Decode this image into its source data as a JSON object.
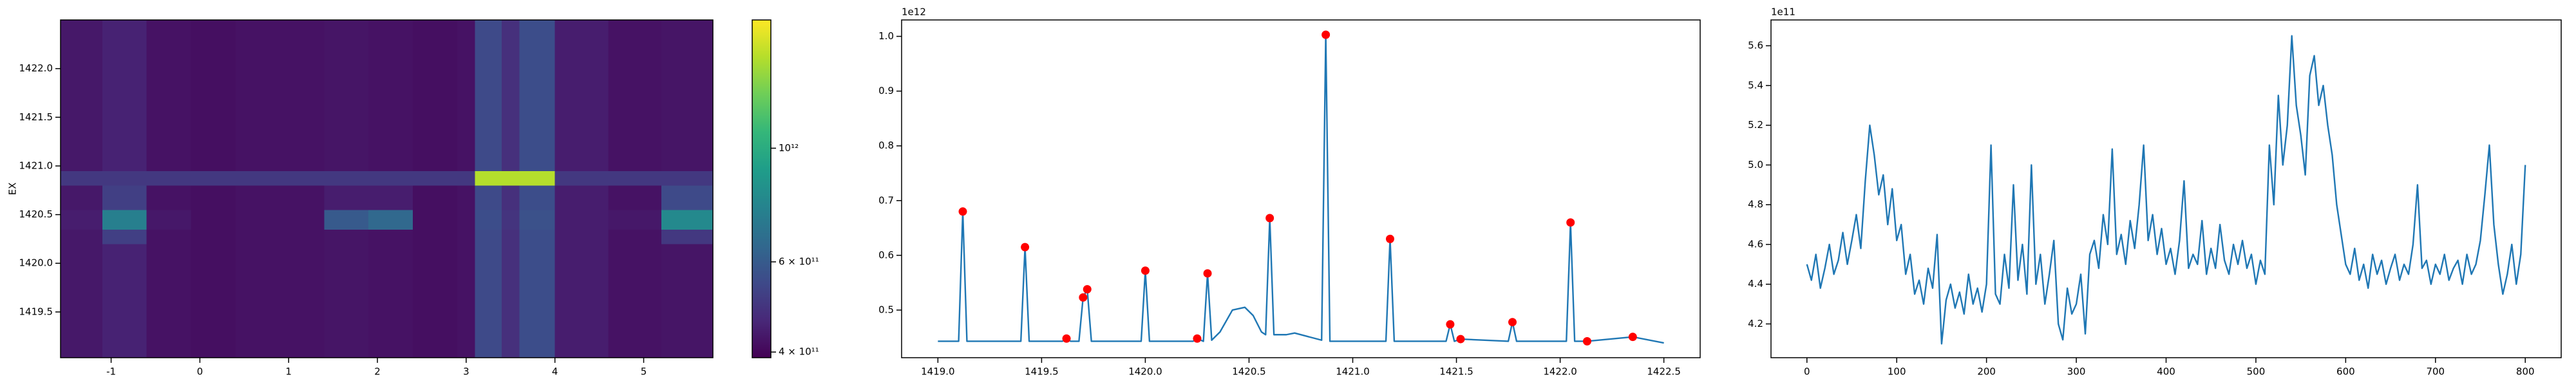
{
  "chart_data": [
    {
      "type": "heatmap",
      "ylabel": "EX",
      "colormap": "viridis",
      "colorbar_scale": "log",
      "xlim": [
        -1.57,
        5.78
      ],
      "ylim": [
        1419.03,
        1422.5
      ],
      "xticks": [
        -1,
        0,
        1,
        2,
        3,
        4,
        5
      ],
      "yticks": [
        1419.5,
        {
          "value": 1420.0,
          "label": "1420.0"
        },
        1420.5,
        {
          "value": 1421.0,
          "label": "1421.0"
        },
        1421.5,
        {
          "value": 1422.0,
          "label": "1422.0"
        }
      ],
      "clim": [
        390000000000.0,
        1780000000000.0
      ],
      "cticks": [
        {
          "value": 400000000000.0,
          "label": "4 × 10¹¹"
        },
        {
          "value": 600000000000.0,
          "label": "6 × 10¹¹"
        },
        {
          "value": 1000000000000.0,
          "label": "10¹²"
        }
      ],
      "x_edges": [
        -1.57,
        -1.1,
        -0.6,
        -0.1,
        0.4,
        0.9,
        1.4,
        1.9,
        2.4,
        2.9,
        3.1,
        3.4,
        3.6,
        4.0,
        4.6,
        5.2,
        5.78
      ],
      "y_edges": [
        1419.03,
        1419.5,
        1419.9,
        1420.2,
        1420.35,
        1420.55,
        1420.8,
        1420.95,
        1421.2,
        1421.6,
        1422.0,
        1422.5
      ],
      "z": [
        [
          430000000000.0,
          450000000000.0,
          420000000000.0,
          415000000000.0,
          420000000000.0,
          420000000000.0,
          425000000000.0,
          420000000000.0,
          415000000000.0,
          420000000000.0,
          550000000000.0,
          480000000000.0,
          560000000000.0,
          440000000000.0,
          420000000000.0,
          425000000000.0
        ],
        [
          430000000000.0,
          450000000000.0,
          420000000000.0,
          415000000000.0,
          420000000000.0,
          420000000000.0,
          425000000000.0,
          420000000000.0,
          415000000000.0,
          420000000000.0,
          550000000000.0,
          480000000000.0,
          560000000000.0,
          440000000000.0,
          420000000000.0,
          425000000000.0
        ],
        [
          430000000000.0,
          450000000000.0,
          420000000000.0,
          415000000000.0,
          420000000000.0,
          420000000000.0,
          425000000000.0,
          420000000000.0,
          415000000000.0,
          420000000000.0,
          550000000000.0,
          480000000000.0,
          560000000000.0,
          440000000000.0,
          420000000000.0,
          425000000000.0
        ],
        [
          430000000000.0,
          520000000000.0,
          420000000000.0,
          415000000000.0,
          420000000000.0,
          420000000000.0,
          425000000000.0,
          420000000000.0,
          415000000000.0,
          420000000000.0,
          550000000000.0,
          480000000000.0,
          560000000000.0,
          440000000000.0,
          420000000000.0,
          500000000000.0
        ],
        [
          440000000000.0,
          750000000000.0,
          430000000000.0,
          415000000000.0,
          420000000000.0,
          420000000000.0,
          600000000000.0,
          650000000000.0,
          415000000000.0,
          420000000000.0,
          560000000000.0,
          490000000000.0,
          570000000000.0,
          440000000000.0,
          430000000000.0,
          800000000000.0
        ],
        [
          430000000000.0,
          520000000000.0,
          420000000000.0,
          415000000000.0,
          420000000000.0,
          420000000000.0,
          440000000000.0,
          440000000000.0,
          415000000000.0,
          420000000000.0,
          550000000000.0,
          480000000000.0,
          560000000000.0,
          440000000000.0,
          420000000000.0,
          550000000000.0
        ],
        [
          500000000000.0,
          500000000000.0,
          500000000000.0,
          500000000000.0,
          500000000000.0,
          500000000000.0,
          500000000000.0,
          500000000000.0,
          500000000000.0,
          500000000000.0,
          1500000000000.0,
          1500000000000.0,
          1500000000000.0,
          500000000000.0,
          500000000000.0,
          500000000000.0
        ],
        [
          430000000000.0,
          450000000000.0,
          420000000000.0,
          415000000000.0,
          420000000000.0,
          420000000000.0,
          425000000000.0,
          420000000000.0,
          415000000000.0,
          420000000000.0,
          550000000000.0,
          480000000000.0,
          560000000000.0,
          440000000000.0,
          420000000000.0,
          425000000000.0
        ],
        [
          430000000000.0,
          450000000000.0,
          420000000000.0,
          415000000000.0,
          420000000000.0,
          420000000000.0,
          425000000000.0,
          420000000000.0,
          415000000000.0,
          420000000000.0,
          550000000000.0,
          480000000000.0,
          560000000000.0,
          440000000000.0,
          420000000000.0,
          425000000000.0
        ],
        [
          430000000000.0,
          450000000000.0,
          420000000000.0,
          415000000000.0,
          420000000000.0,
          420000000000.0,
          425000000000.0,
          420000000000.0,
          415000000000.0,
          420000000000.0,
          550000000000.0,
          480000000000.0,
          560000000000.0,
          440000000000.0,
          420000000000.0,
          425000000000.0
        ],
        [
          430000000000.0,
          450000000000.0,
          420000000000.0,
          415000000000.0,
          420000000000.0,
          420000000000.0,
          425000000000.0,
          420000000000.0,
          415000000000.0,
          420000000000.0,
          550000000000.0,
          480000000000.0,
          560000000000.0,
          440000000000.0,
          420000000000.0,
          425000000000.0
        ]
      ]
    },
    {
      "type": "line",
      "y_offset_label": "1e12",
      "xlim": [
        1418.825,
        1422.675
      ],
      "ylim": [
        0.413,
        1.03
      ],
      "xticks": [
        {
          "value": 1419.0,
          "label": "1419.0"
        },
        1419.5,
        {
          "value": 1420.0,
          "label": "1420.0"
        },
        1420.5,
        {
          "value": 1421.0,
          "label": "1421.0"
        },
        1421.5,
        {
          "value": 1422.0,
          "label": "1422.0"
        },
        1422.5
      ],
      "yticks": [
        0.5,
        0.6,
        0.7,
        0.8,
        0.9,
        {
          "value": 1.0,
          "label": "1.0"
        }
      ],
      "series": [
        {
          "color": "#1f77b4",
          "x": [
            1419.0,
            1419.1,
            1419.12,
            1419.14,
            1419.4,
            1419.42,
            1419.44,
            1419.6,
            1419.62,
            1419.64,
            1419.68,
            1419.7,
            1419.72,
            1419.74,
            1419.98,
            1420.0,
            1420.02,
            1420.23,
            1420.25,
            1420.28,
            1420.3,
            1420.32,
            1420.36,
            1420.42,
            1420.48,
            1420.52,
            1420.56,
            1420.58,
            1420.6,
            1420.62,
            1420.68,
            1420.72,
            1420.78,
            1420.85,
            1420.87,
            1420.89,
            1421.16,
            1421.18,
            1421.2,
            1421.45,
            1421.47,
            1421.49,
            1421.52,
            1421.75,
            1421.77,
            1421.79,
            1422.03,
            1422.05,
            1422.07,
            1422.13,
            1422.35,
            1422.5
          ],
          "values": [
            0.443,
            0.443,
            0.68,
            0.443,
            0.443,
            0.615,
            0.443,
            0.443,
            0.448,
            0.443,
            0.443,
            0.523,
            0.538,
            0.443,
            0.443,
            0.572,
            0.443,
            0.443,
            0.448,
            0.443,
            0.567,
            0.445,
            0.46,
            0.5,
            0.505,
            0.49,
            0.46,
            0.455,
            0.668,
            0.455,
            0.455,
            0.458,
            0.452,
            0.445,
            1.003,
            0.443,
            0.443,
            0.63,
            0.443,
            0.443,
            0.474,
            0.443,
            0.447,
            0.443,
            0.478,
            0.443,
            0.443,
            0.66,
            0.443,
            0.443,
            0.451,
            0.44
          ]
        },
        {
          "type": "scatter",
          "color": "#ff0000",
          "x": [
            1419.12,
            1419.42,
            1419.62,
            1419.7,
            1419.72,
            1420.0,
            1420.25,
            1420.3,
            1420.6,
            1420.87,
            1421.18,
            1421.47,
            1421.52,
            1421.77,
            1422.05,
            1422.13,
            1422.35
          ],
          "values": [
            0.68,
            0.615,
            0.448,
            0.523,
            0.538,
            0.572,
            0.448,
            0.567,
            0.668,
            1.003,
            0.63,
            0.474,
            0.447,
            0.478,
            0.66,
            0.443,
            0.451
          ]
        }
      ]
    },
    {
      "type": "line",
      "y_offset_label": "1e11",
      "xlim": [
        -40,
        840
      ],
      "ylim": [
        4.03,
        5.73
      ],
      "xticks": [
        0,
        100,
        200,
        300,
        400,
        500,
        600,
        700,
        800
      ],
      "yticks": [
        4.2,
        4.4,
        4.6,
        4.8,
        {
          "value": 5.0,
          "label": "5.0"
        },
        5.2,
        5.4,
        5.6
      ],
      "series": [
        {
          "color": "#1f77b4",
          "x": [
            0,
            5,
            10,
            15,
            20,
            25,
            30,
            35,
            40,
            45,
            50,
            55,
            60,
            65,
            70,
            75,
            80,
            85,
            90,
            95,
            100,
            105,
            110,
            115,
            120,
            125,
            130,
            135,
            140,
            145,
            150,
            155,
            160,
            165,
            170,
            175,
            180,
            185,
            190,
            195,
            200,
            205,
            210,
            215,
            220,
            225,
            230,
            235,
            240,
            245,
            250,
            255,
            260,
            265,
            270,
            275,
            280,
            285,
            290,
            295,
            300,
            305,
            310,
            315,
            320,
            325,
            330,
            335,
            340,
            345,
            350,
            355,
            360,
            365,
            370,
            375,
            380,
            385,
            390,
            395,
            400,
            405,
            410,
            415,
            420,
            425,
            430,
            435,
            440,
            445,
            450,
            455,
            460,
            465,
            470,
            475,
            480,
            485,
            490,
            495,
            500,
            505,
            510,
            515,
            520,
            525,
            530,
            535,
            540,
            545,
            550,
            555,
            560,
            565,
            570,
            575,
            580,
            585,
            590,
            595,
            600,
            605,
            610,
            615,
            620,
            625,
            630,
            635,
            640,
            645,
            650,
            655,
            660,
            665,
            670,
            675,
            680,
            685,
            690,
            695,
            700,
            705,
            710,
            715,
            720,
            725,
            730,
            735,
            740,
            745,
            750,
            755,
            760,
            765,
            770,
            775,
            780,
            785,
            790,
            795,
            800
          ],
          "values": [
            4.5,
            4.42,
            4.55,
            4.38,
            4.48,
            4.6,
            4.45,
            4.52,
            4.66,
            4.5,
            4.62,
            4.75,
            4.58,
            4.92,
            5.2,
            5.05,
            4.85,
            4.95,
            4.7,
            4.88,
            4.62,
            4.7,
            4.45,
            4.55,
            4.35,
            4.42,
            4.3,
            4.48,
            4.38,
            4.65,
            4.1,
            4.32,
            4.4,
            4.28,
            4.36,
            4.25,
            4.45,
            4.3,
            4.38,
            4.26,
            4.4,
            5.1,
            4.35,
            4.3,
            4.55,
            4.38,
            4.9,
            4.42,
            4.6,
            4.35,
            5.0,
            4.4,
            4.55,
            4.3,
            4.45,
            4.62,
            4.2,
            4.12,
            4.38,
            4.25,
            4.3,
            4.45,
            4.15,
            4.55,
            4.62,
            4.48,
            4.75,
            4.6,
            5.08,
            4.55,
            4.65,
            4.5,
            4.72,
            4.58,
            4.8,
            5.1,
            4.62,
            4.75,
            4.55,
            4.68,
            4.5,
            4.58,
            4.45,
            4.62,
            4.92,
            4.48,
            4.55,
            4.5,
            4.72,
            4.45,
            4.58,
            4.48,
            4.7,
            4.52,
            4.45,
            4.6,
            4.5,
            4.62,
            4.48,
            4.55,
            4.4,
            4.52,
            4.45,
            5.1,
            4.8,
            5.35,
            5.0,
            5.2,
            5.65,
            5.3,
            5.15,
            4.95,
            5.45,
            5.55,
            5.3,
            5.4,
            5.2,
            5.05,
            4.8,
            4.65,
            4.5,
            4.45,
            4.58,
            4.42,
            4.5,
            4.38,
            4.55,
            4.45,
            4.52,
            4.4,
            4.48,
            4.55,
            4.42,
            4.5,
            4.45,
            4.6,
            4.9,
            4.48,
            4.52,
            4.4,
            4.5,
            4.45,
            4.55,
            4.42,
            4.48,
            4.52,
            4.4,
            4.55,
            4.45,
            4.5,
            4.62,
            4.85,
            5.1,
            4.7,
            4.5,
            4.35,
            4.45,
            4.6,
            4.4,
            4.55,
            5.0
          ]
        }
      ]
    }
  ]
}
